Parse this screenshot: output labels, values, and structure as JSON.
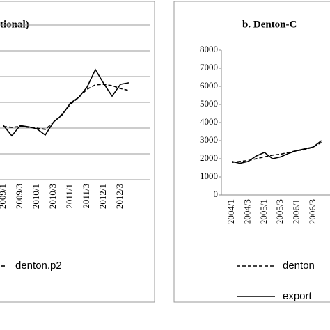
{
  "chart_data": [
    {
      "type": "line",
      "title": "tional)",
      "categories": [
        "2009/1",
        null,
        "2009/3",
        null,
        "2010/1",
        null,
        "2010/3",
        null,
        "2011/1",
        null,
        "2011/3",
        null,
        "2012/1",
        null,
        "2012/3",
        null
      ],
      "ylim": [
        0,
        6
      ],
      "grid": true,
      "series": [
        {
          "color": "#000000",
          "dash": false,
          "values": [
            2.1,
            1.7,
            2.1,
            2.05,
            1.97,
            1.73,
            2.24,
            2.5,
            2.97,
            3.19,
            3.59,
            4.27,
            3.73,
            3.24,
            3.7,
            3.76
          ]
        },
        {
          "name": "denton.p2",
          "color": "#000000",
          "dash": true,
          "values": [
            2.06,
            2.03,
            2.06,
            2.03,
            2.0,
            1.95,
            2.22,
            2.54,
            2.92,
            3.19,
            3.51,
            3.68,
            3.7,
            3.65,
            3.54,
            3.46
          ]
        }
      ]
    },
    {
      "type": "line",
      "title": "b. Denton-C",
      "categories": [
        "2004/1",
        null,
        "2004/3",
        null,
        "2005/1",
        null,
        "2005/3",
        null,
        "2006/1",
        null,
        "2006/3",
        null
      ],
      "ylim": [
        0,
        8000
      ],
      "yticks": [
        0,
        1000,
        2000,
        3000,
        4000,
        5000,
        6000,
        7000,
        8000
      ],
      "grid": false,
      "series": [
        {
          "name": "denton",
          "color": "#000000",
          "dash": true,
          "values": [
            1800,
            1850,
            1900,
            2000,
            2100,
            2200,
            2250,
            2350,
            2450,
            2500,
            2650,
            2900
          ]
        },
        {
          "name": "export",
          "color": "#000000",
          "dash": false,
          "values": [
            1850,
            1750,
            1850,
            2150,
            2350,
            2000,
            2100,
            2300,
            2450,
            2550,
            2650,
            3000
          ]
        }
      ]
    }
  ]
}
